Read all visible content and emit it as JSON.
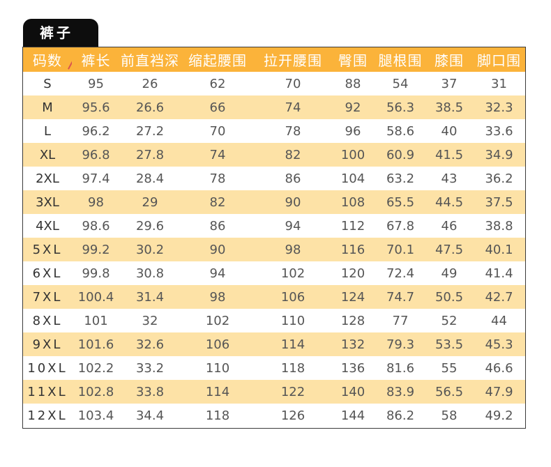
{
  "tab_title": "裤子",
  "headers": [
    "码数",
    "裤长",
    "前直裆深",
    "缩起腰围",
    "拉开腰围",
    "臀围",
    "腿根围",
    "膝围",
    "脚口围"
  ],
  "rows": [
    [
      "S",
      "95",
      "26",
      "62",
      "70",
      "88",
      "54",
      "37",
      "31"
    ],
    [
      "M",
      "95.6",
      "26.6",
      "66",
      "74",
      "92",
      "56.3",
      "38.5",
      "32.3"
    ],
    [
      "L",
      "96.2",
      "27.2",
      "70",
      "78",
      "96",
      "58.6",
      "40",
      "33.6"
    ],
    [
      "XL",
      "96.8",
      "27.8",
      "74",
      "82",
      "100",
      "60.9",
      "41.5",
      "34.9"
    ],
    [
      "2XL",
      "97.4",
      "28.4",
      "78",
      "86",
      "104",
      "63.2",
      "43",
      "36.2"
    ],
    [
      "3XL",
      "98",
      "29",
      "82",
      "90",
      "108",
      "65.5",
      "44.5",
      "37.5"
    ],
    [
      "4XL",
      "98.6",
      "29.6",
      "86",
      "94",
      "112",
      "67.8",
      "46",
      "38.8"
    ],
    [
      "5XL",
      "99.2",
      "30.2",
      "90",
      "98",
      "116",
      "70.1",
      "47.5",
      "40.1"
    ],
    [
      "6XL",
      "99.8",
      "30.8",
      "94",
      "102",
      "120",
      "72.4",
      "49",
      "41.4"
    ],
    [
      "7XL",
      "100.4",
      "31.4",
      "98",
      "106",
      "124",
      "74.7",
      "50.5",
      "42.7"
    ],
    [
      "8XL",
      "101",
      "32",
      "102",
      "110",
      "128",
      "77",
      "52",
      "44"
    ],
    [
      "9XL",
      "101.6",
      "32.6",
      "106",
      "114",
      "132",
      "79.3",
      "53.5",
      "45.3"
    ],
    [
      "10XL",
      "102.2",
      "33.2",
      "110",
      "118",
      "136",
      "81.6",
      "55",
      "46.6"
    ],
    [
      "11XL",
      "102.8",
      "33.8",
      "114",
      "122",
      "140",
      "83.9",
      "56.5",
      "47.9"
    ],
    [
      "12XL",
      "103.4",
      "34.4",
      "118",
      "126",
      "144",
      "86.2",
      "58",
      "49.2"
    ]
  ],
  "colors": {
    "header_bg": "#fbb33a",
    "stripe_bg": "#fde2a6",
    "tab_bg": "#0d0d0d",
    "divider": "#d9534f"
  }
}
